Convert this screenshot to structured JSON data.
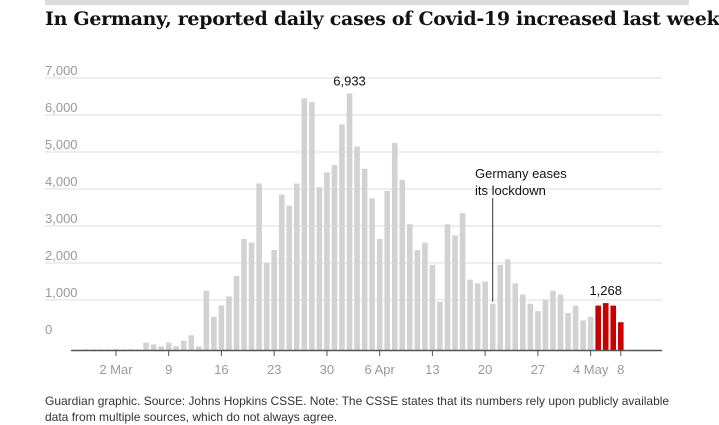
{
  "title": "In Germany, reported daily cases of Covid-19 increased last week",
  "source": "Guardian graphic. Source: Johns Hopkins CSSE. Note: The CSSE states that its numbers rely upon publicly available data from multiple sources, which do not always agree.",
  "colors": {
    "bar": "#d2d2d2",
    "highlight": "#c70000",
    "grid": "#dcdcdc",
    "axis": "#555555",
    "tick": "#999999"
  },
  "chart_data": {
    "type": "bar",
    "ylim": [
      0,
      7000
    ],
    "yticks": [
      "7,000",
      "6,000",
      "5,000",
      "4,000",
      "3,000",
      "2,000",
      "1,000",
      "0"
    ],
    "grid": true,
    "xticks": [
      {
        "label": "2 Mar",
        "index": 4
      },
      {
        "label": "9",
        "index": 11
      },
      {
        "label": "16",
        "index": 18
      },
      {
        "label": "23",
        "index": 25
      },
      {
        "label": "30",
        "index": 32
      },
      {
        "label": "6 Apr",
        "index": 39
      },
      {
        "label": "13",
        "index": 46
      },
      {
        "label": "20",
        "index": 53
      },
      {
        "label": "27",
        "index": 60
      },
      {
        "label": "4 May",
        "index": 67
      },
      {
        "label": "8",
        "index": 71
      }
    ],
    "values": [
      0,
      0,
      0,
      10,
      20,
      10,
      20,
      0,
      200,
      150,
      100,
      200,
      100,
      250,
      400,
      100,
      1600,
      900,
      1200,
      1450,
      2000,
      3000,
      2900,
      4500,
      2350,
      2700,
      4200,
      3900,
      4500,
      6800,
      6700,
      4400,
      4800,
      5000,
      6100,
      6933,
      5500,
      4900,
      4100,
      3000,
      4300,
      5600,
      4600,
      3400,
      2700,
      2900,
      2300,
      1300,
      3400,
      3100,
      3700,
      1900,
      1800,
      1850,
      1250,
      2300,
      2450,
      1800,
      1500,
      1250,
      1050,
      1350,
      1600,
      1500,
      1000,
      1200,
      800,
      900,
      1200,
      1268,
      1200,
      750
    ],
    "highlight_start": 68,
    "annotations": [
      {
        "label": "6,933",
        "index": 35
      },
      {
        "label": "1,268",
        "index": 69
      },
      {
        "label": "Germany eases its lockdown",
        "lines": [
          "Germany eases",
          "its lockdown"
        ],
        "index": 54
      }
    ]
  }
}
